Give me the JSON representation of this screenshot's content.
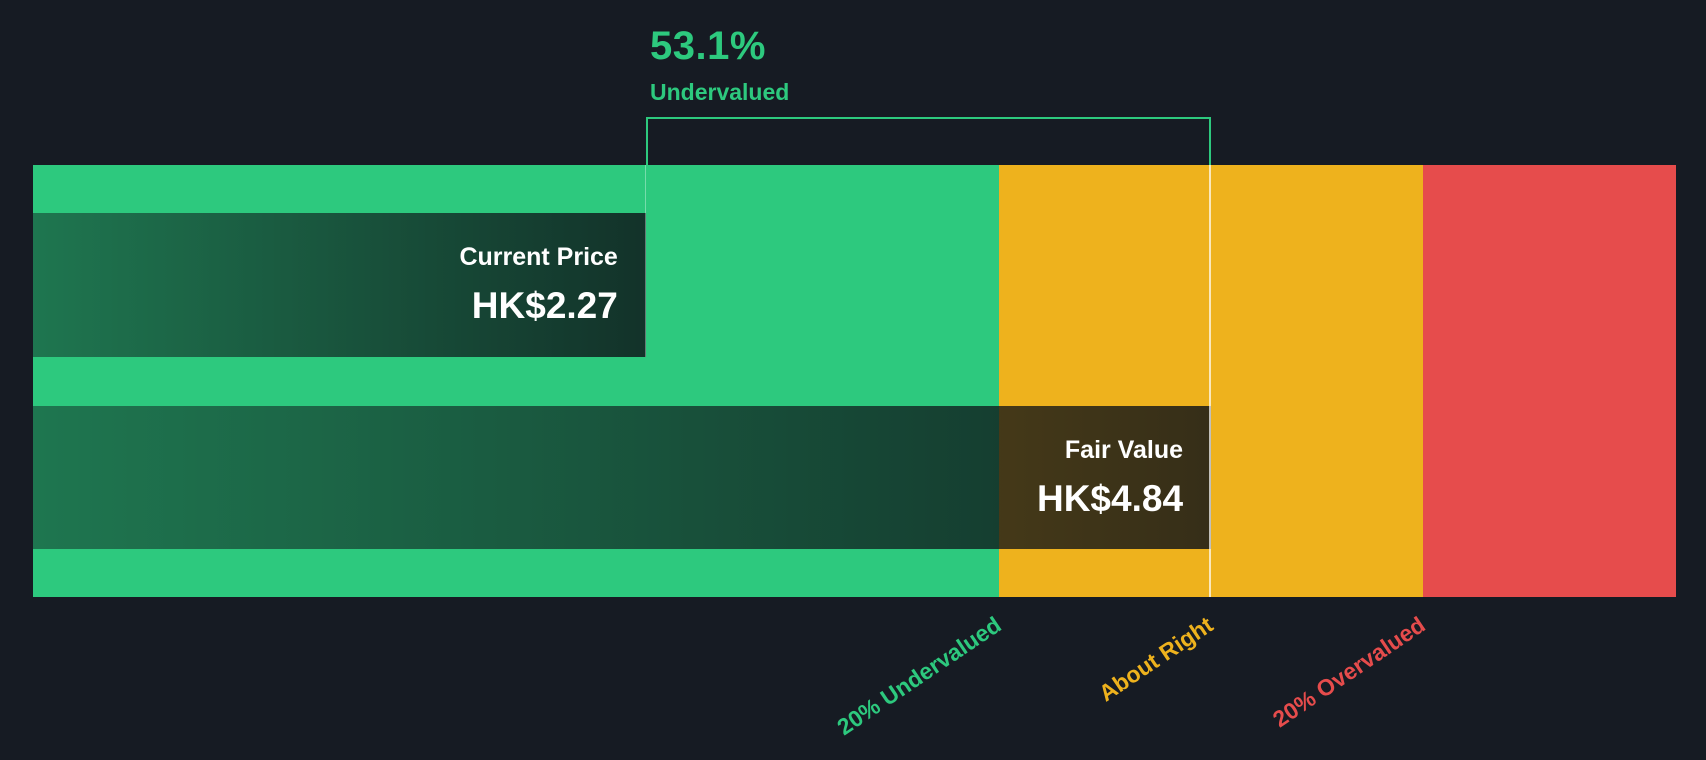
{
  "chart_data": {
    "type": "bar",
    "orientation": "horizontal",
    "currency": "HK$",
    "annotation": {
      "value": "53.1%",
      "label": "Undervalued",
      "color": "#2dc97e"
    },
    "bars": [
      {
        "name": "Current Price",
        "display": "HK$2.27",
        "value": 2.27
      },
      {
        "name": "Fair Value",
        "display": "HK$4.84",
        "value": 4.84
      }
    ],
    "discount_pct": 53.1,
    "zones": [
      {
        "label": "20% Undervalued",
        "color": "#2dc97e"
      },
      {
        "label": "About Right",
        "color": "#eeb21d"
      },
      {
        "label": "20% Overvalued",
        "color": "#e64c4c"
      }
    ],
    "layout": {
      "legend": false,
      "grid": false
    }
  },
  "colors": {
    "background": "#161b23",
    "bracket": "#2dc97e",
    "fair_value_line": "rgba(255,255,255,0.7)",
    "overlay_text": "#ffffff"
  }
}
